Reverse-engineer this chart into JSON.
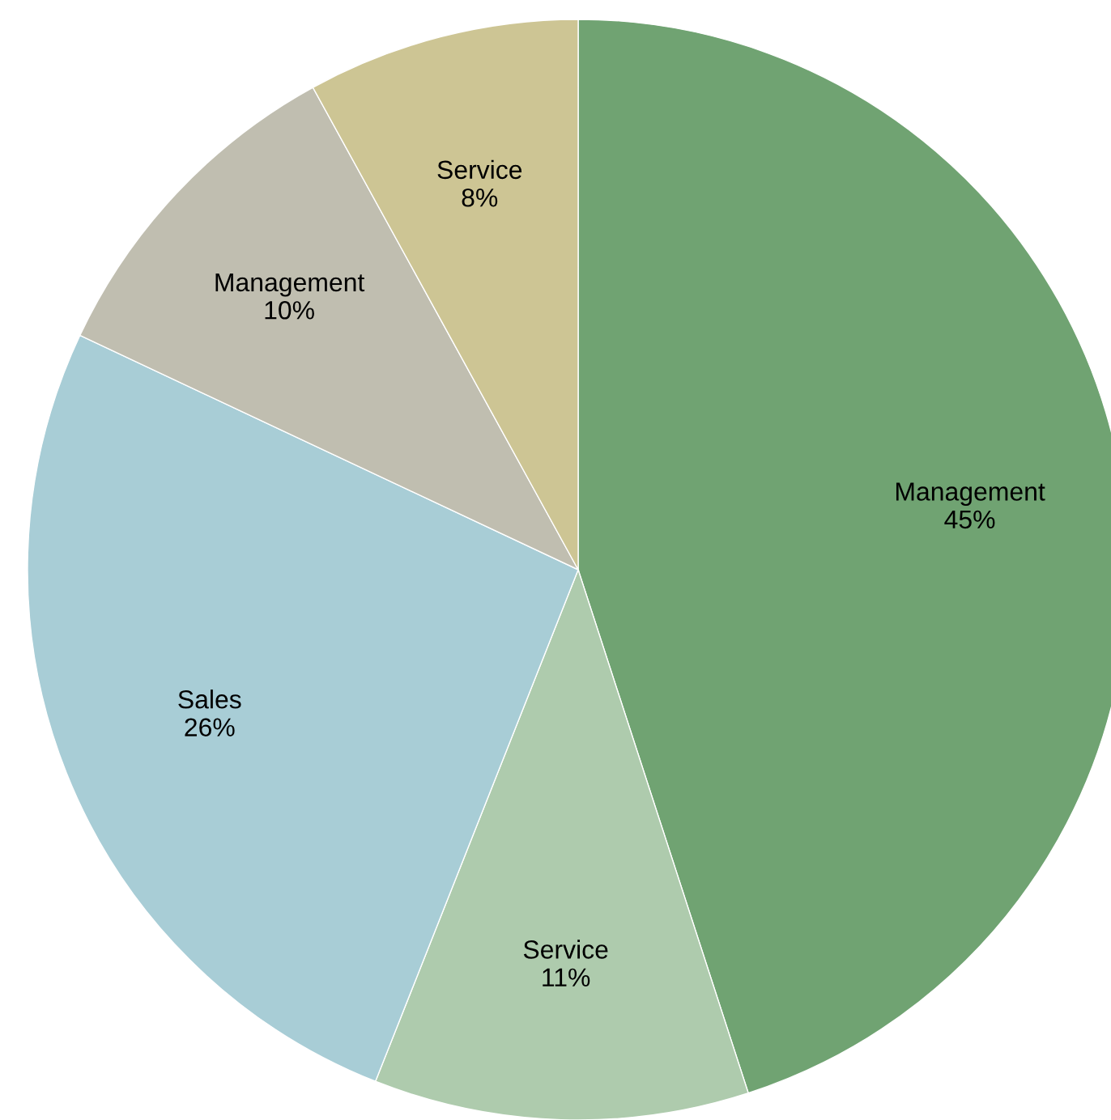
{
  "chart_data": {
    "type": "pie",
    "categories": [
      "Management",
      "Service",
      "Sales",
      "Management",
      "Service"
    ],
    "values": [
      45,
      11,
      26,
      10,
      8
    ],
    "value_labels": [
      "45%",
      "11%",
      "26%",
      "10%",
      "8%"
    ],
    "colors": [
      "#70a372",
      "#aecbad",
      "#a8cdd6",
      "#c0beb0",
      "#cdc594"
    ]
  }
}
